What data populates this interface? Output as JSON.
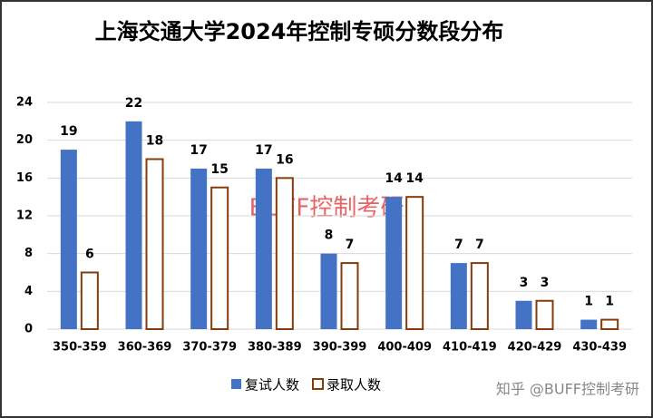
{
  "chart_data": {
    "type": "bar",
    "title": "上海交通大学2024年控制专硕分数段分布",
    "categories": [
      "350-359",
      "360-369",
      "370-379",
      "380-389",
      "390-399",
      "400-409",
      "410-419",
      "420-429",
      "430-439"
    ],
    "series": [
      {
        "name": "复试人数",
        "color": "#4472c4",
        "values": [
          19,
          22,
          17,
          17,
          8,
          14,
          7,
          3,
          1
        ]
      },
      {
        "name": "录取人数",
        "color": "#843c0c",
        "fill": "#ffffff",
        "values": [
          6,
          18,
          15,
          16,
          7,
          14,
          7,
          3,
          1
        ]
      }
    ],
    "ylim": [
      0,
      24
    ],
    "yticks": [
      0,
      4,
      8,
      12,
      16,
      20,
      24
    ],
    "grid": true,
    "legend": "bottom",
    "watermark": "BUFF控制考研",
    "source": "知乎 @BUFF控制考研"
  }
}
